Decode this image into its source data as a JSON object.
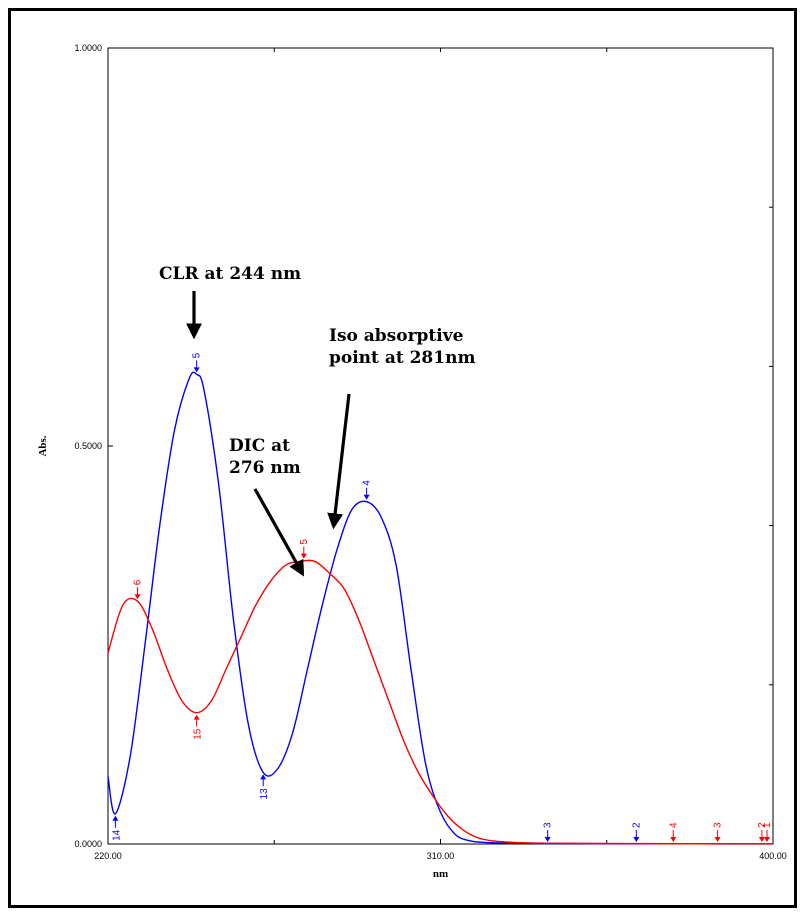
{
  "chart_data": {
    "type": "line",
    "xlabel": "nm",
    "ylabel": "Abs.",
    "xlim": [
      220,
      400
    ],
    "ylim": [
      0,
      1
    ],
    "x_ticks": [
      "220.00",
      "310.00",
      "400.00"
    ],
    "y_ticks": [
      "0.0000",
      "0.5000",
      "1.0000"
    ],
    "grid": false,
    "series": [
      {
        "color": "#0000ff",
        "x": [
          220,
          222,
          226,
          230,
          234,
          238,
          242,
          244,
          246,
          250,
          254,
          258,
          262,
          266,
          270,
          274,
          278,
          282,
          286,
          290,
          294,
          298,
          302,
          306,
          310,
          314,
          318,
          322,
          330,
          340,
          360,
          380,
          400
        ],
        "y": [
          0.085,
          0.038,
          0.11,
          0.25,
          0.4,
          0.52,
          0.585,
          0.59,
          0.57,
          0.45,
          0.28,
          0.15,
          0.09,
          0.095,
          0.14,
          0.22,
          0.3,
          0.37,
          0.42,
          0.43,
          0.41,
          0.35,
          0.22,
          0.1,
          0.04,
          0.012,
          0.004,
          0.002,
          0.001,
          0.0005,
          0.0003,
          0.0002,
          0.0001
        ]
      },
      {
        "color": "#ff0000",
        "x": [
          220,
          224,
          228,
          232,
          236,
          240,
          244,
          248,
          252,
          256,
          260,
          264,
          268,
          272,
          276,
          280,
          284,
          288,
          292,
          296,
          300,
          304,
          308,
          312,
          316,
          320,
          324,
          330,
          340,
          360,
          380,
          400
        ],
        "y": [
          0.24,
          0.3,
          0.305,
          0.27,
          0.22,
          0.18,
          0.165,
          0.18,
          0.22,
          0.26,
          0.3,
          0.33,
          0.35,
          0.355,
          0.355,
          0.34,
          0.32,
          0.28,
          0.23,
          0.18,
          0.13,
          0.09,
          0.06,
          0.035,
          0.018,
          0.008,
          0.004,
          0.002,
          0.001,
          0.0005,
          0.0003,
          0.0002
        ]
      }
    ],
    "peak_markers": [
      {
        "label": "5",
        "series": 0,
        "x": 244,
        "y": 0.59,
        "dir": "down"
      },
      {
        "label": "4",
        "series": 0,
        "x": 290,
        "y": 0.43,
        "dir": "down"
      },
      {
        "label": "13",
        "series": 0,
        "x": 262,
        "y": 0.09,
        "dir": "up"
      },
      {
        "label": "14",
        "series": 0,
        "x": 222,
        "y": 0.038,
        "dir": "up"
      },
      {
        "label": "6",
        "series": 1,
        "x": 228,
        "y": 0.305,
        "dir": "down"
      },
      {
        "label": "5",
        "series": 1,
        "x": 273,
        "y": 0.356,
        "dir": "down"
      },
      {
        "label": "15",
        "series": 1,
        "x": 244,
        "y": 0.165,
        "dir": "up"
      },
      {
        "label": "3",
        "series": 0,
        "x": 339,
        "y": 0.0,
        "dir": "down"
      },
      {
        "label": "2",
        "series": 0,
        "x": 363,
        "y": 0.0,
        "dir": "down"
      },
      {
        "label": "4",
        "series": 1,
        "x": 373,
        "y": 0.0,
        "dir": "down"
      },
      {
        "label": "3",
        "series": 1,
        "x": 385,
        "y": 0.0,
        "dir": "down"
      },
      {
        "label": "2",
        "series": 1,
        "x": 397,
        "y": 0.0,
        "dir": "down"
      },
      {
        "label": "1",
        "series": 1,
        "x": 402,
        "y": 0.0,
        "dir": "down"
      }
    ],
    "annotations": [
      {
        "lines": [
          "CLR at 244 nm"
        ],
        "arrow_to": [
          244,
          0.63
        ]
      },
      {
        "lines": [
          "Iso absorptive",
          "point at 281nm"
        ],
        "arrow_to": [
          278,
          0.4
        ]
      },
      {
        "lines": [
          "DIC at",
          "276 nm"
        ],
        "arrow_to": [
          270,
          0.345
        ]
      }
    ]
  }
}
